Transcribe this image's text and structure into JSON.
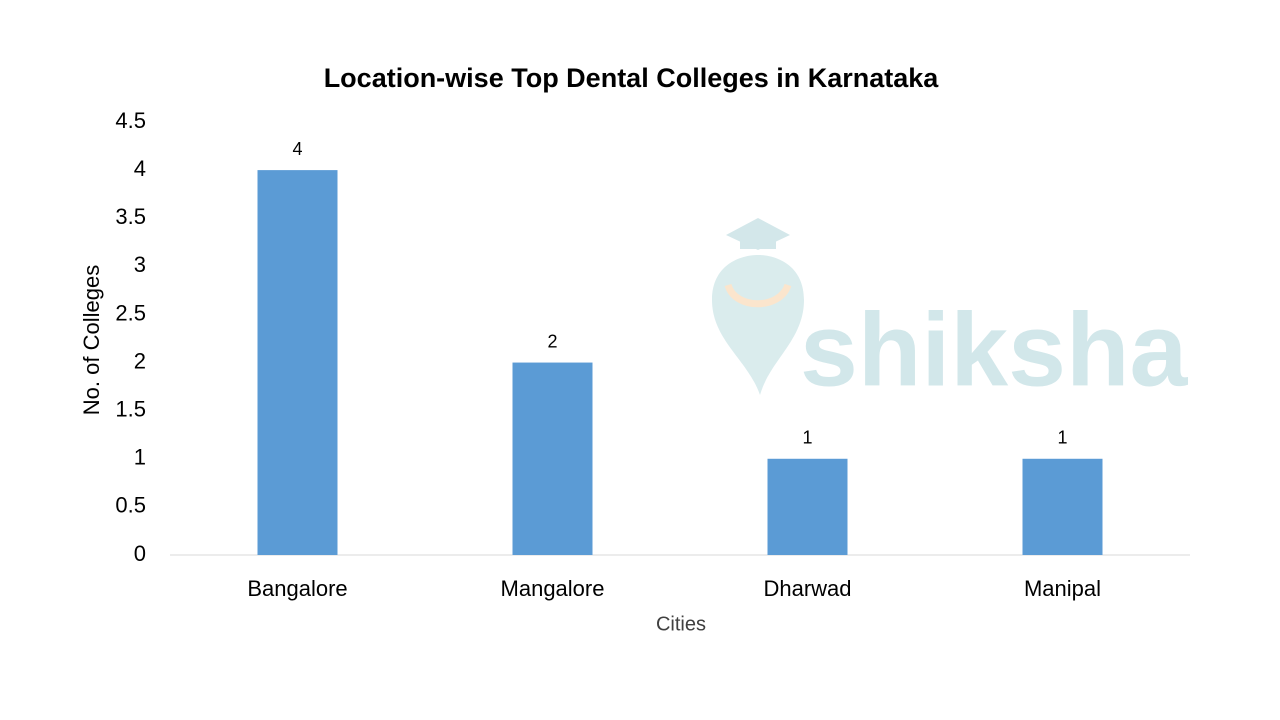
{
  "chart_data": {
    "type": "bar",
    "title": "Location-wise Top Dental Colleges in Karnataka",
    "xlabel": "Cities",
    "ylabel": "No. of Colleges",
    "categories": [
      "Bangalore",
      "Mangalore",
      "Dharwad",
      "Manipal"
    ],
    "values": [
      4,
      2,
      1,
      1
    ],
    "color": "#5b9bd5",
    "ylim": [
      0,
      4.5
    ],
    "yticks": [
      0,
      0.5,
      1,
      1.5,
      2,
      2.5,
      3,
      3.5,
      4,
      4.5
    ],
    "grid": false,
    "watermark": "shiksha"
  }
}
